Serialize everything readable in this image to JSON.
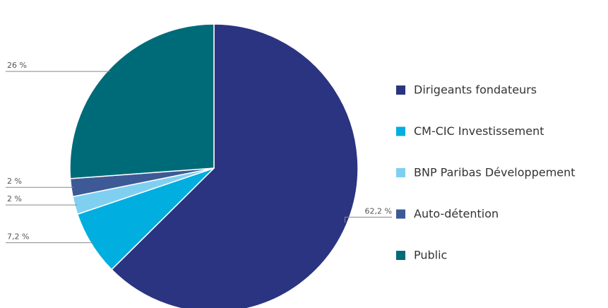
{
  "chart_data": {
    "type": "pie",
    "categories": [
      "Dirigeants fondateurs",
      "CM-CIC Investissement",
      "BNP Paribas Développement",
      "Auto-détention",
      "Public"
    ],
    "values": [
      62.2,
      7.2,
      2,
      2,
      26
    ],
    "value_labels": [
      "62,2 %",
      "7,2 %",
      "2 %",
      "2 %",
      "26 %"
    ],
    "colors": [
      "#2b3480",
      "#00aee0",
      "#7fd0f0",
      "#3d5a96",
      "#006b78"
    ],
    "legend": "right"
  }
}
